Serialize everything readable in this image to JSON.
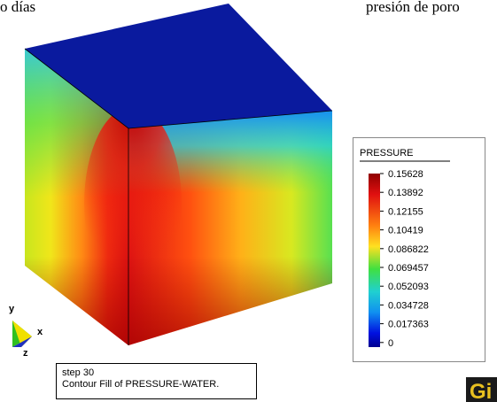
{
  "header": {
    "left": "o días",
    "right": "presión de poro"
  },
  "legend": {
    "title": "PRESSURE",
    "labels": [
      "0.15628",
      "0.13892",
      "0.12155",
      "0.10419",
      "0.086822",
      "0.069457",
      "0.052093",
      "0.034728",
      "0.017363",
      "0"
    ]
  },
  "axes": {
    "y": "y",
    "x": "x",
    "z": "z"
  },
  "status": {
    "lines": [
      "step 30",
      "Contour Fill of PRESSURE-WATER."
    ]
  },
  "logo": "Gi"
}
